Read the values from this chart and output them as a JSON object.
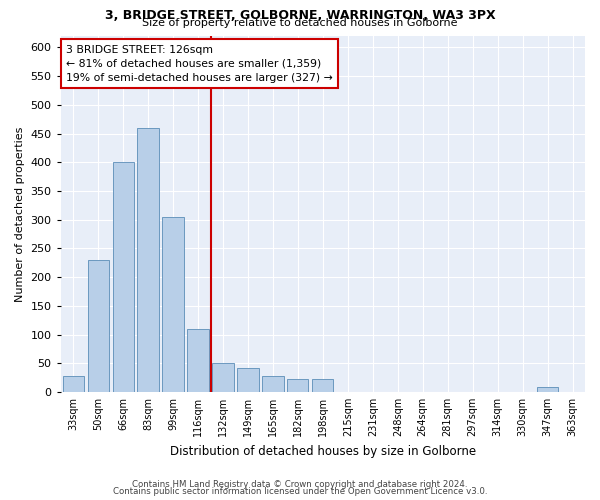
{
  "title": "3, BRIDGE STREET, GOLBORNE, WARRINGTON, WA3 3PX",
  "subtitle": "Size of property relative to detached houses in Golborne",
  "xlabel": "Distribution of detached houses by size in Golborne",
  "ylabel": "Number of detached properties",
  "categories": [
    "33sqm",
    "50sqm",
    "66sqm",
    "83sqm",
    "99sqm",
    "116sqm",
    "132sqm",
    "149sqm",
    "165sqm",
    "182sqm",
    "198sqm",
    "215sqm",
    "231sqm",
    "248sqm",
    "264sqm",
    "281sqm",
    "297sqm",
    "314sqm",
    "330sqm",
    "347sqm",
    "363sqm"
  ],
  "values": [
    28,
    230,
    400,
    460,
    305,
    110,
    50,
    42,
    28,
    22,
    22,
    0,
    0,
    0,
    0,
    0,
    0,
    0,
    0,
    8,
    0
  ],
  "bar_color": "#b8cfe8",
  "bar_edge_color": "#5b8db8",
  "vline_index": 5,
  "vline_color": "#cc0000",
  "annotation_title": "3 BRIDGE STREET: 126sqm",
  "annotation_line1": "← 81% of detached houses are smaller (1,359)",
  "annotation_line2": "19% of semi-detached houses are larger (327) →",
  "ylim": [
    0,
    620
  ],
  "yticks": [
    0,
    50,
    100,
    150,
    200,
    250,
    300,
    350,
    400,
    450,
    500,
    550,
    600
  ],
  "bg_color": "#e8eef8",
  "grid_color": "#ffffff",
  "fig_bg": "#ffffff",
  "footer1": "Contains HM Land Registry data © Crown copyright and database right 2024.",
  "footer2": "Contains public sector information licensed under the Open Government Licence v3.0."
}
